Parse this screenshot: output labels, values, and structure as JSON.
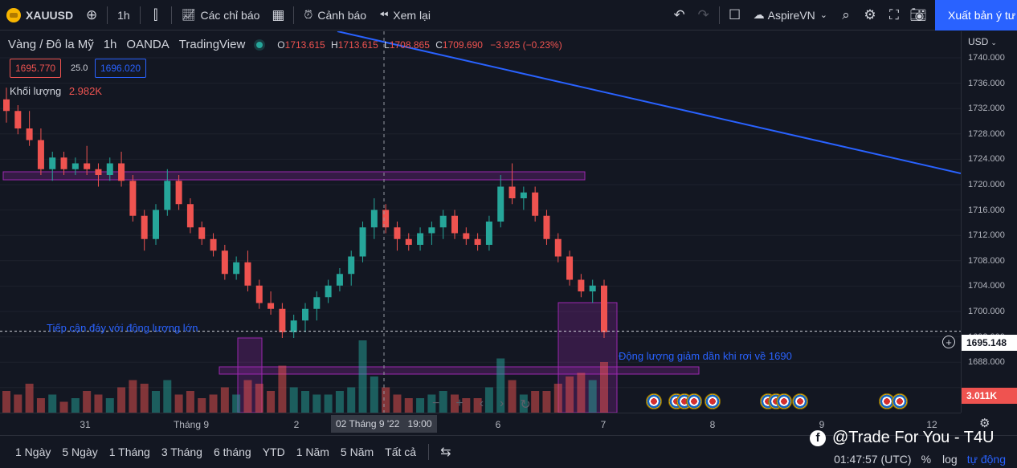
{
  "toolbar": {
    "symbol": "XAUUSD",
    "interval": "1h",
    "indicators_label": "Các chỉ báo",
    "alerts_label": "Cảnh báo",
    "replay_label": "Xem lại",
    "account_label": "AspireVN",
    "publish_label": "Xuất bản ý tư"
  },
  "legend": {
    "title": "Vàng / Đô la Mỹ",
    "interval": "1h",
    "broker": "OANDA",
    "platform": "TradingView",
    "o_label": "O",
    "o_value": "1713.615",
    "h_label": "H",
    "h_value": "1713.615",
    "l_label": "L",
    "l_value": "1708.865",
    "c_label": "C",
    "c_value": "1709.690",
    "change": "−3.925 (−0.23%)",
    "sell_price": "1695.770",
    "spread": "25.0",
    "buy_price": "1696.020",
    "volume_label": "Khối lượng",
    "volume_value": "2.982K"
  },
  "annotations": {
    "left_note": "Tiếp cận đáy với động lượng lớn",
    "right_note": "Động lượng giảm dần khi rơi về 1690"
  },
  "price_axis": {
    "currency": "USD",
    "ticks": [
      "1740.000",
      "1736.000",
      "1732.000",
      "1728.000",
      "1724.000",
      "1720.000",
      "1716.000",
      "1712.000",
      "1708.000",
      "1704.000",
      "1700.000",
      "1695.148",
      "1692.000",
      "1688.000"
    ],
    "current_price": "1695.148",
    "volume_badge": "3.011K"
  },
  "time_axis": {
    "labels": [
      "31",
      "Tháng 9",
      "2",
      "6",
      "7",
      "8",
      "9",
      "12"
    ],
    "crosshair_label": "02 Tháng 9 '22",
    "crosshair_time": "19:00"
  },
  "bottom": {
    "ranges": [
      "1 Ngày",
      "5 Ngày",
      "1 Tháng",
      "3 Tháng",
      "6 tháng",
      "YTD",
      "1 Năm",
      "5 Năm",
      "Tất cả"
    ],
    "clock": "01:47:57 (UTC)",
    "percent": "%",
    "log": "log",
    "auto": "tự động"
  },
  "watermark": "@Trade For You - T4U",
  "colors": {
    "up": "#26a69a",
    "down": "#ef5350",
    "zone": "#9c27b0",
    "trendline": "#2962ff",
    "background": "#131722"
  },
  "chart_data": {
    "type": "candlestick",
    "symbol": "XAUUSD",
    "price_range": [
      1686,
      1742
    ],
    "ohlc": [
      [
        1735,
        1737,
        1731,
        1733
      ],
      [
        1733,
        1734,
        1729,
        1730
      ],
      [
        1730,
        1733,
        1727,
        1728
      ],
      [
        1728,
        1730,
        1722,
        1723
      ],
      [
        1723,
        1726,
        1721,
        1725
      ],
      [
        1725,
        1726,
        1722,
        1723
      ],
      [
        1723,
        1725,
        1722,
        1724
      ],
      [
        1724,
        1727,
        1722,
        1723
      ],
      [
        1723,
        1724,
        1720,
        1722
      ],
      [
        1722,
        1725,
        1721,
        1724
      ],
      [
        1724,
        1726,
        1720,
        1721
      ],
      [
        1721,
        1722,
        1714,
        1715
      ],
      [
        1715,
        1716,
        1709,
        1711
      ],
      [
        1711,
        1717,
        1710,
        1716
      ],
      [
        1716,
        1723,
        1715,
        1721
      ],
      [
        1721,
        1722,
        1716,
        1717
      ],
      [
        1717,
        1718,
        1712,
        1713
      ],
      [
        1713,
        1714,
        1710,
        1711
      ],
      [
        1711,
        1712,
        1708,
        1709
      ],
      [
        1709,
        1710,
        1704,
        1705
      ],
      [
        1705,
        1708,
        1704,
        1707
      ],
      [
        1707,
        1709,
        1702,
        1703
      ],
      [
        1703,
        1704,
        1699,
        1700
      ],
      [
        1700,
        1702,
        1698,
        1699
      ],
      [
        1699,
        1700,
        1694,
        1695
      ],
      [
        1695,
        1698,
        1694,
        1697
      ],
      [
        1697,
        1700,
        1695,
        1699
      ],
      [
        1699,
        1702,
        1697,
        1701
      ],
      [
        1701,
        1704,
        1700,
        1703
      ],
      [
        1703,
        1706,
        1702,
        1705
      ],
      [
        1705,
        1709,
        1703,
        1708
      ],
      [
        1708,
        1714,
        1707,
        1713
      ],
      [
        1713,
        1718,
        1711,
        1716
      ],
      [
        1716,
        1717,
        1712,
        1713
      ],
      [
        1713,
        1714,
        1709,
        1711
      ],
      [
        1711,
        1712,
        1709,
        1710
      ],
      [
        1710,
        1713,
        1709,
        1712
      ],
      [
        1712,
        1714,
        1710,
        1713
      ],
      [
        1713,
        1716,
        1711,
        1715
      ],
      [
        1715,
        1716,
        1711,
        1712
      ],
      [
        1712,
        1713,
        1710,
        1711
      ],
      [
        1711,
        1712,
        1709,
        1710
      ],
      [
        1710,
        1715,
        1709,
        1714
      ],
      [
        1714,
        1722,
        1713,
        1720
      ],
      [
        1720,
        1724,
        1717,
        1718
      ],
      [
        1718,
        1720,
        1716,
        1719
      ],
      [
        1719,
        1720,
        1714,
        1715
      ],
      [
        1715,
        1716,
        1710,
        1711
      ],
      [
        1711,
        1712,
        1707,
        1708
      ],
      [
        1708,
        1709,
        1703,
        1704
      ],
      [
        1704,
        1705,
        1701,
        1702
      ],
      [
        1702,
        1704,
        1700,
        1703
      ],
      [
        1703,
        1704,
        1694,
        1695
      ]
    ],
    "volumes": [
      0.6,
      0.5,
      0.8,
      0.4,
      0.5,
      0.3,
      0.4,
      0.6,
      0.5,
      0.4,
      0.7,
      0.9,
      0.8,
      0.6,
      0.9,
      0.5,
      0.6,
      0.4,
      0.5,
      0.7,
      0.5,
      0.9,
      0.8,
      0.6,
      1.3,
      0.7,
      0.6,
      0.5,
      0.5,
      0.6,
      0.7,
      2.0,
      1.0,
      0.7,
      0.5,
      0.4,
      0.4,
      0.5,
      0.6,
      0.5,
      0.4,
      0.4,
      0.7,
      1.5,
      0.9,
      0.5,
      0.6,
      0.6,
      0.8,
      1.0,
      1.1,
      0.9,
      1.4
    ],
    "support_line": 1695.148
  }
}
